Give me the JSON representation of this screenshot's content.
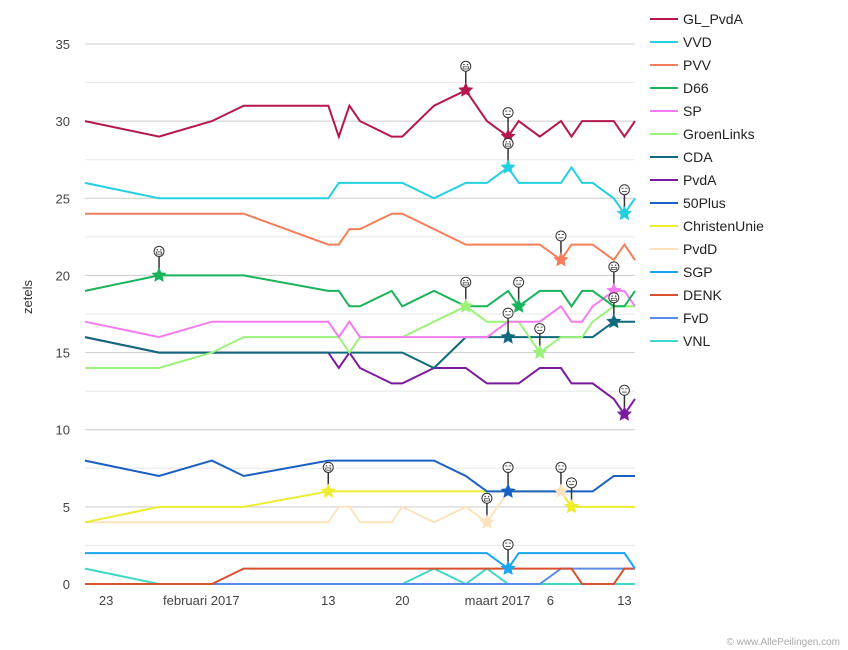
{
  "chart_data": {
    "type": "line",
    "title": "",
    "xlabel": "",
    "ylabel": "zetels",
    "ylim": [
      0,
      35
    ],
    "yticks": [
      0,
      5,
      10,
      15,
      20,
      25,
      30,
      35
    ],
    "grid": true,
    "legend_position": "right",
    "x_ticks": [
      {
        "day": 2,
        "label": "23"
      },
      {
        "day": 11,
        "label": "februari 2017"
      },
      {
        "day": 23,
        "label": "13"
      },
      {
        "day": 30,
        "label": "20"
      },
      {
        "day": 39,
        "label": "maart 2017"
      },
      {
        "day": 44,
        "label": "6"
      },
      {
        "day": 51,
        "label": "13"
      }
    ],
    "x_range_days": [
      0,
      52
    ],
    "x_days": [
      0,
      7,
      12,
      15,
      23,
      24,
      25,
      26,
      29,
      30,
      33,
      36,
      38,
      40,
      41,
      43,
      45,
      46,
      47,
      48,
      50,
      51,
      52
    ],
    "series": [
      {
        "name": "GL_PvdA",
        "color": "#b5174a",
        "values": [
          30,
          29,
          30,
          31,
          31,
          29,
          31,
          30,
          29,
          29,
          31,
          32,
          30,
          29,
          30,
          29,
          30,
          29,
          30,
          30,
          30,
          29,
          30
        ],
        "markers": [
          {
            "i": 11,
            "face": "grin"
          },
          {
            "i": 13,
            "face": "meh"
          }
        ]
      },
      {
        "name": "VVD",
        "color": "#22d0e0",
        "values": [
          26,
          25,
          25,
          25,
          25,
          26,
          26,
          26,
          26,
          26,
          25,
          26,
          26,
          27,
          26,
          26,
          26,
          27,
          26,
          26,
          25,
          24,
          25
        ],
        "markers": [
          {
            "i": 13,
            "face": "grin"
          },
          {
            "i": 21,
            "face": "meh"
          }
        ]
      },
      {
        "name": "PVV",
        "color": "#f47e5a",
        "values": [
          24,
          24,
          24,
          24,
          22,
          22,
          23,
          23,
          24,
          24,
          23,
          22,
          22,
          22,
          22,
          22,
          21,
          22,
          22,
          22,
          21,
          22,
          21
        ],
        "markers": [
          {
            "i": 16,
            "face": "meh"
          }
        ]
      },
      {
        "name": "D66",
        "color": "#19b35a",
        "values": [
          19,
          20,
          20,
          20,
          19,
          19,
          18,
          18,
          19,
          18,
          19,
          18,
          18,
          19,
          18,
          19,
          19,
          18,
          19,
          19,
          18,
          18,
          19
        ],
        "markers": [
          {
            "i": 1,
            "face": "grin"
          },
          {
            "i": 14,
            "face": "meh"
          }
        ]
      },
      {
        "name": "SP",
        "color": "#f57cf0",
        "values": [
          17,
          16,
          17,
          17,
          17,
          16,
          17,
          16,
          16,
          16,
          16,
          16,
          16,
          17,
          17,
          17,
          18,
          17,
          17,
          18,
          19,
          19,
          18
        ],
        "markers": [
          {
            "i": 20,
            "face": "grin"
          }
        ]
      },
      {
        "name": "GroenLinks",
        "color": "#9bf27a",
        "values": [
          14,
          14,
          15,
          16,
          16,
          16,
          15,
          16,
          16,
          16,
          17,
          18,
          17,
          17,
          17,
          15,
          16,
          16,
          16,
          17,
          18,
          18,
          18
        ],
        "markers": [
          {
            "i": 11,
            "face": "grin"
          },
          {
            "i": 15,
            "face": "meh"
          }
        ]
      },
      {
        "name": "CDA",
        "color": "#0f6a7c",
        "values": [
          16,
          15,
          15,
          15,
          15,
          15,
          15,
          15,
          15,
          15,
          14,
          16,
          16,
          16,
          16,
          16,
          16,
          16,
          16,
          16,
          17,
          17,
          17
        ],
        "markers": [
          {
            "i": 13,
            "face": "meh"
          },
          {
            "i": 20,
            "face": "grin"
          }
        ]
      },
      {
        "name": "PvdA",
        "color": "#7a1a9e",
        "values": [
          16,
          15,
          15,
          15,
          15,
          14,
          15,
          14,
          13,
          13,
          14,
          14,
          13,
          13,
          13,
          14,
          14,
          13,
          13,
          13,
          12,
          11,
          12
        ],
        "markers": [
          {
            "i": 21,
            "face": "meh"
          }
        ]
      },
      {
        "name": "50Plus",
        "color": "#1a5fc2",
        "values": [
          8,
          7,
          8,
          7,
          8,
          8,
          8,
          8,
          8,
          8,
          8,
          7,
          6,
          6,
          6,
          6,
          6,
          6,
          6,
          6,
          7,
          7,
          7
        ],
        "markers": [
          {
            "i": 13,
            "face": "meh"
          }
        ]
      },
      {
        "name": "ChristenUnie",
        "color": "#eded2e",
        "values": [
          4,
          5,
          5,
          5,
          6,
          6,
          6,
          6,
          6,
          6,
          6,
          6,
          6,
          6,
          6,
          6,
          6,
          5,
          5,
          5,
          5,
          5,
          5
        ],
        "markers": [
          {
            "i": 4,
            "face": "grin"
          },
          {
            "i": 17,
            "face": "meh"
          }
        ]
      },
      {
        "name": "PvdD",
        "color": "#fde3bd",
        "values": [
          4,
          4,
          4,
          4,
          4,
          5,
          5,
          4,
          4,
          5,
          4,
          5,
          4,
          6,
          6,
          6,
          6,
          5,
          5,
          5,
          5,
          5,
          5
        ],
        "markers": [
          {
            "i": 12,
            "face": "grin"
          },
          {
            "i": 16,
            "face": "meh"
          }
        ]
      },
      {
        "name": "SGP",
        "color": "#19a5ee",
        "values": [
          2,
          2,
          2,
          2,
          2,
          2,
          2,
          2,
          2,
          2,
          2,
          2,
          2,
          1,
          2,
          2,
          2,
          2,
          2,
          2,
          2,
          2,
          1
        ],
        "markers": [
          {
            "i": 13,
            "face": "meh"
          }
        ]
      },
      {
        "name": "DENK",
        "color": "#d9502f",
        "values": [
          0,
          0,
          0,
          1,
          1,
          1,
          1,
          1,
          1,
          1,
          1,
          1,
          1,
          1,
          1,
          1,
          1,
          1,
          0,
          0,
          0,
          1,
          1
        ],
        "markers": []
      },
      {
        "name": "FvD",
        "color": "#5b8be8",
        "values": [
          0,
          0,
          0,
          0,
          0,
          0,
          0,
          0,
          0,
          0,
          0,
          0,
          0,
          0,
          0,
          0,
          1,
          1,
          1,
          1,
          1,
          1,
          1
        ],
        "markers": []
      },
      {
        "name": "VNL",
        "color": "#3fd8c8",
        "values": [
          1,
          0,
          0,
          0,
          0,
          0,
          0,
          0,
          0,
          0,
          1,
          0,
          1,
          0,
          0,
          0,
          0,
          0,
          0,
          0,
          0,
          0,
          0
        ],
        "markers": []
      }
    ]
  },
  "copyright": "© www.AllePeilingen.com"
}
